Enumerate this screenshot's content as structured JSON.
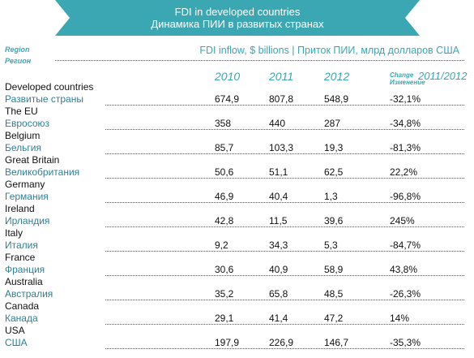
{
  "title": {
    "en": "FDI in developed countries",
    "ru": "Динамика ПИИ в развитых странах"
  },
  "header": {
    "region_en": "Region",
    "region_ru": "Регион",
    "units": "FDI inflow, $ billions | Приток ПИИ, млрд долларов США",
    "years": [
      "2010",
      "2011",
      "2012"
    ],
    "change_en": "Change",
    "change_ru": "Изменение",
    "change_range": "2011/2012"
  },
  "rows": [
    {
      "en": "Developed countries",
      "ru": "Развитые страны",
      "y2010": "674,9",
      "y2011": "807,8",
      "y2012": "548,9",
      "change": "-32,1%"
    },
    {
      "en": "The EU",
      "ru": "Евросоюз",
      "y2010": "358",
      "y2011": "440",
      "y2012": "287",
      "change": "-34,8%"
    },
    {
      "en": "Belgium",
      "ru": "Бельгия",
      "y2010": "85,7",
      "y2011": "103,3",
      "y2012": "19,3",
      "change": "-81,3%"
    },
    {
      "en": "Great Britain",
      "ru": "Великобритания",
      "y2010": "50,6",
      "y2011": "51,1",
      "y2012": "62,5",
      "change": "22,2%"
    },
    {
      "en": "Germany",
      "ru": "Германия",
      "y2010": "46,9",
      "y2011": "40,4",
      "y2012": "1,3",
      "change": "-96,8%"
    },
    {
      "en": "Ireland",
      "ru": "Ирландия",
      "y2010": "42,8",
      "y2011": "11,5",
      "y2012": "39,6",
      "change": "245%"
    },
    {
      "en": "Italy",
      "ru": "Италия",
      "y2010": "9,2",
      "y2011": "34,3",
      "y2012": "5,3",
      "change": "-84,7%"
    },
    {
      "en": "France",
      "ru": "Франция",
      "y2010": "30,6",
      "y2011": "40,9",
      "y2012": "58,9",
      "change": "43,8%"
    },
    {
      "en": "Australia",
      "ru": "Австралия",
      "y2010": "35,2",
      "y2011": "65,8",
      "y2012": "48,5",
      "change": "-26,3%"
    },
    {
      "en": "Canada",
      "ru": "Канада",
      "y2010": "29,1",
      "y2011": "41,4",
      "y2012": "47,2",
      "change": "14%"
    },
    {
      "en": "USA",
      "ru": "США",
      "y2010": "197,9",
      "y2011": "226,9",
      "y2012": "146,7",
      "change": "-35,3%"
    }
  ],
  "colors": {
    "accent": "#3aa7b3",
    "russian_text": "#2f7f95"
  }
}
